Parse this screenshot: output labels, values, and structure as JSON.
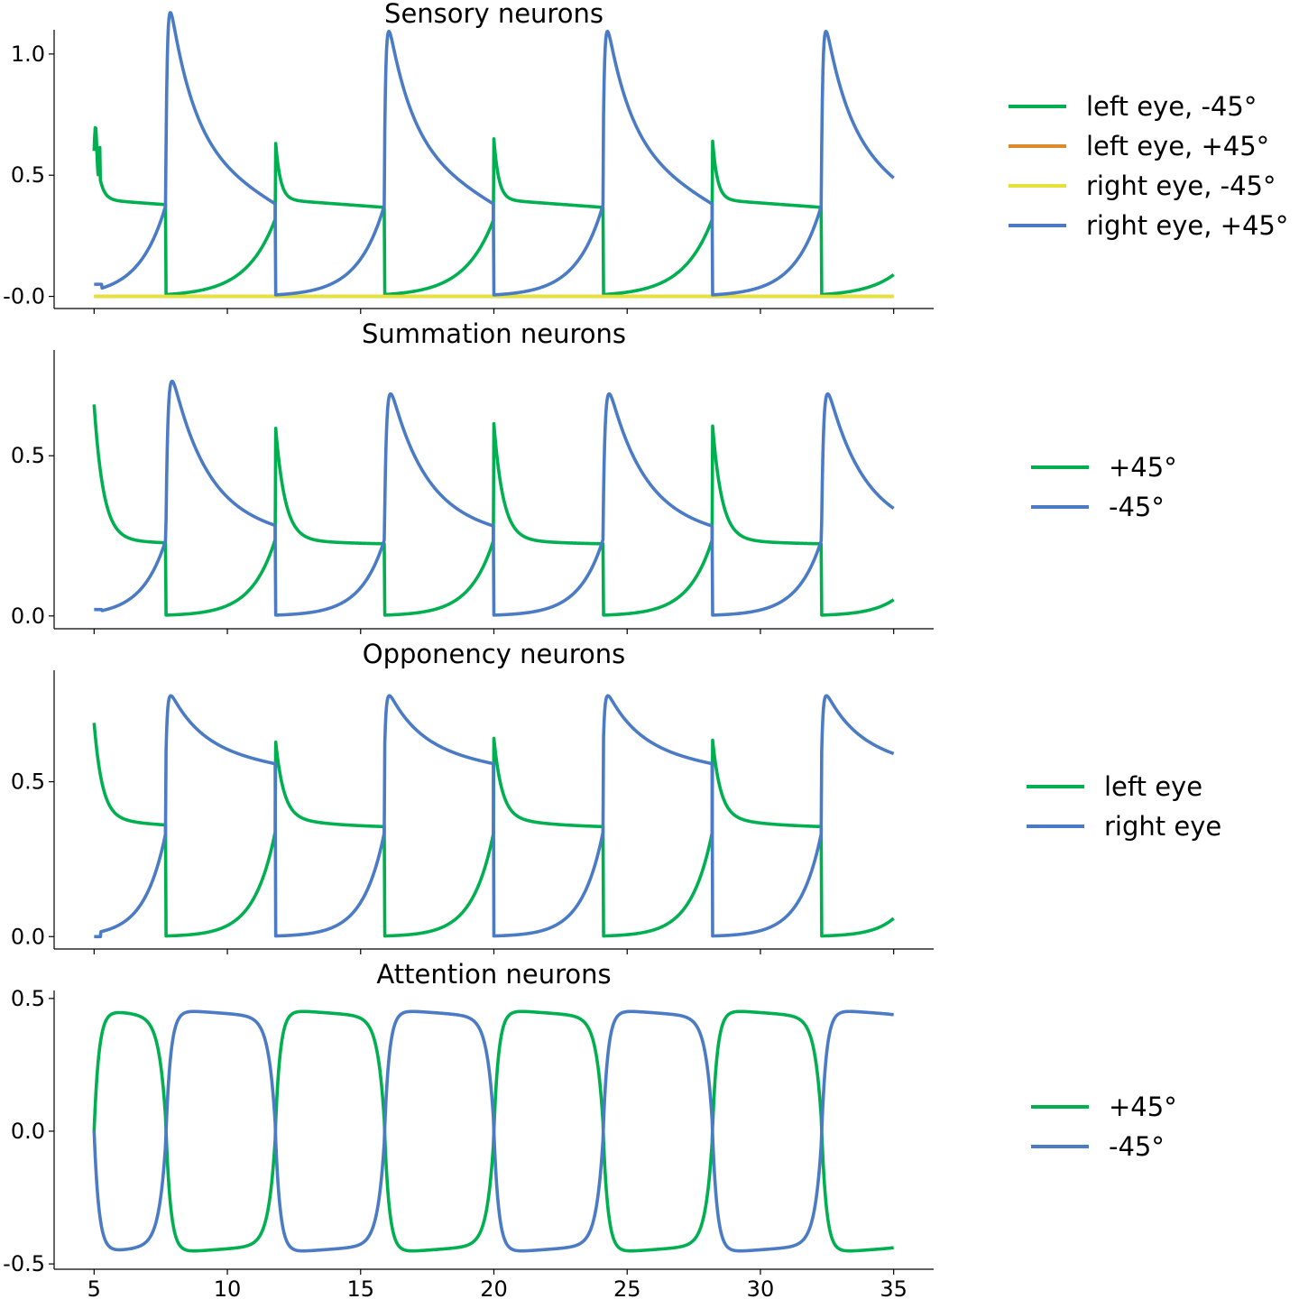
{
  "chart_data": [
    {
      "type": "line",
      "title": "Sensory neurons",
      "xlim": [
        3.5,
        36.5
      ],
      "ylim": [
        -0.05,
        1.1
      ],
      "yticks": [
        1.0,
        0.5,
        0.0
      ],
      "ytick_labels": [
        "1.0",
        "0.5",
        "-0.0"
      ],
      "xticks": [
        5,
        10,
        15,
        20,
        25,
        30,
        35
      ],
      "xtick_labels": [],
      "legend_position": "right",
      "series": [
        {
          "name": "left eye, -45°",
          "color": "#00b050",
          "profile": "sensGreen"
        },
        {
          "name": "left eye, +45°",
          "color": "#dd8a2d",
          "profile": "zero"
        },
        {
          "name": "right eye, -45°",
          "color": "#e4e238",
          "profile": "zero"
        },
        {
          "name": "right eye, +45°",
          "color": "#4a7bc4",
          "profile": "sensBlue"
        }
      ]
    },
    {
      "type": "line",
      "title": "Summation neurons",
      "xlim": [
        3.5,
        36.5
      ],
      "ylim": [
        -0.04,
        0.83
      ],
      "yticks": [
        0.5,
        0.0
      ],
      "ytick_labels": [
        "0.5",
        "0.0"
      ],
      "xticks": [
        5,
        10,
        15,
        20,
        25,
        30,
        35
      ],
      "xtick_labels": [],
      "legend_position": "right",
      "series": [
        {
          "name": "+45°",
          "color": "#00b050",
          "profile": "sumGreen"
        },
        {
          "name": "-45°",
          "color": "#4a7bc4",
          "profile": "sumBlue"
        }
      ]
    },
    {
      "type": "line",
      "title": "Opponency neurons",
      "xlim": [
        3.5,
        36.5
      ],
      "ylim": [
        -0.04,
        0.86
      ],
      "yticks": [
        0.5,
        0.0
      ],
      "ytick_labels": [
        "0.5",
        "0.0"
      ],
      "xticks": [
        5,
        10,
        15,
        20,
        25,
        30,
        35
      ],
      "xtick_labels": [],
      "legend_position": "right",
      "series": [
        {
          "name": "left eye",
          "color": "#00b050",
          "profile": "oppGreen"
        },
        {
          "name": "right eye",
          "color": "#4a7bc4",
          "profile": "oppBlue"
        }
      ]
    },
    {
      "type": "line",
      "title": "Attention neurons",
      "xlim": [
        3.5,
        36.5
      ],
      "ylim": [
        -0.52,
        0.53
      ],
      "yticks": [
        0.5,
        0.0,
        -0.5
      ],
      "ytick_labels": [
        "0.5",
        "0.0",
        "-0.5"
      ],
      "xticks": [
        5,
        10,
        15,
        20,
        25,
        30,
        35
      ],
      "xtick_labels": [
        "5",
        "10",
        "15",
        "20",
        "25",
        "30",
        "35"
      ],
      "legend_position": "right",
      "series": [
        {
          "name": "+45°",
          "color": "#00b050",
          "profile": "attGreen"
        },
        {
          "name": "-45°",
          "color": "#4a7bc4",
          "profile": "attBlue"
        }
      ]
    }
  ],
  "dominance": {
    "switch_times": [
      5.0,
      7.7,
      11.8,
      15.9,
      20.0,
      24.1,
      28.2,
      32.3
    ],
    "first_dominant": "left-eye / +45°"
  }
}
